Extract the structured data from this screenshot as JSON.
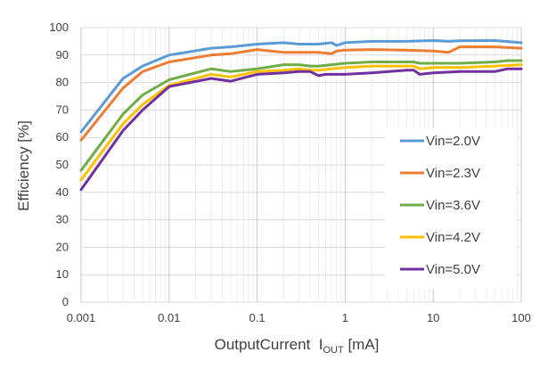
{
  "chart_data": {
    "type": "line",
    "x_scale": "log",
    "xlim": [
      0.001,
      100
    ],
    "ylim": [
      0,
      100
    ],
    "x_ticks": [
      "0.001",
      "0.01",
      "0.1",
      "1",
      "10",
      "100"
    ],
    "y_ticks": [
      "0",
      "10",
      "20",
      "30",
      "40",
      "50",
      "60",
      "70",
      "80",
      "90",
      "100"
    ],
    "xlabel_main": "OutputCurrent  I",
    "xlabel_sub": "OUT",
    "xlabel_unit": " [mA]",
    "ylabel": "Efficiency [%]",
    "grid": true,
    "legend_position": "right",
    "series": [
      {
        "name": "Vin=2.0V",
        "color": "#5b9bd5",
        "x": [
          0.001,
          0.003,
          0.005,
          0.01,
          0.03,
          0.05,
          0.1,
          0.2,
          0.3,
          0.5,
          0.7,
          0.8,
          1,
          2,
          5,
          10,
          15,
          20,
          50,
          100
        ],
        "y": [
          62,
          81.5,
          86,
          90,
          92.5,
          93,
          94,
          94.5,
          94,
          94,
          94.5,
          93.5,
          94.5,
          95,
          95,
          95.3,
          95,
          95.2,
          95.3,
          94.5
        ]
      },
      {
        "name": "Vin=2.3V",
        "color": "#ed7d31",
        "x": [
          0.001,
          0.003,
          0.005,
          0.01,
          0.03,
          0.05,
          0.1,
          0.2,
          0.3,
          0.5,
          0.7,
          0.8,
          1,
          2,
          5,
          10,
          15,
          20,
          50,
          100
        ],
        "y": [
          59,
          78,
          84,
          87.5,
          90,
          90.5,
          92,
          91,
          91,
          91,
          90.5,
          91.5,
          91.8,
          92,
          91.8,
          91.5,
          91,
          93,
          93,
          92.5
        ]
      },
      {
        "name": "Vin=3.6V",
        "color": "#70ad47",
        "x": [
          0.001,
          0.003,
          0.005,
          0.01,
          0.03,
          0.05,
          0.1,
          0.2,
          0.3,
          0.4,
          0.5,
          1,
          2,
          5,
          6,
          7,
          10,
          20,
          50,
          70,
          100
        ],
        "y": [
          48,
          68.5,
          75.5,
          81,
          85,
          84,
          85,
          86.5,
          86.5,
          86,
          86,
          87,
          87.5,
          87.5,
          87.5,
          87,
          87,
          87,
          87.5,
          88,
          88
        ]
      },
      {
        "name": "Vin=4.2V",
        "color": "#ffc000",
        "x": [
          0.001,
          0.003,
          0.005,
          0.01,
          0.03,
          0.05,
          0.1,
          0.2,
          0.3,
          0.4,
          0.5,
          1,
          2,
          5,
          6,
          7,
          10,
          20,
          50,
          100
        ],
        "y": [
          44.5,
          65,
          72,
          79,
          83,
          82,
          84,
          84.5,
          85,
          84.5,
          84.5,
          85.5,
          86,
          86,
          86,
          85,
          85.5,
          85.5,
          86,
          86.5
        ]
      },
      {
        "name": "Vin=5.0V",
        "color": "#7030a0",
        "x": [
          0.001,
          0.003,
          0.005,
          0.01,
          0.03,
          0.05,
          0.1,
          0.2,
          0.3,
          0.4,
          0.5,
          0.6,
          1,
          2,
          5,
          6,
          7,
          10,
          20,
          50,
          70,
          100
        ],
        "y": [
          41,
          62.5,
          70,
          78.5,
          81.5,
          80.5,
          83,
          83.5,
          84,
          84,
          82.5,
          83,
          83,
          83.5,
          84.5,
          84.5,
          83,
          83.5,
          84,
          84,
          85,
          85
        ]
      }
    ]
  }
}
